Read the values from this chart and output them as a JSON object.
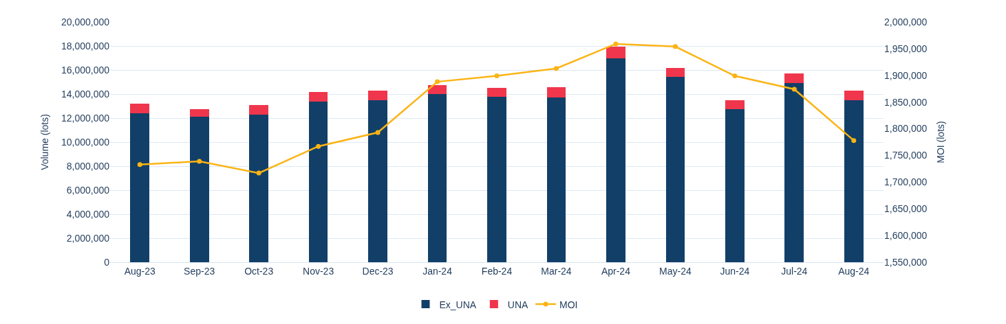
{
  "chart_data": {
    "type": "bar",
    "stacked": true,
    "xlabel": null,
    "ylabel": "Volume (lots)",
    "y2label": "MOI (lots)",
    "categories": [
      "Aug-23",
      "Sep-23",
      "Oct-23",
      "Nov-23",
      "Dec-23",
      "Jan-24",
      "Feb-24",
      "Mar-24",
      "Apr-24",
      "May-24",
      "Jun-24",
      "Jul-24",
      "Aug-24"
    ],
    "series": [
      {
        "name": "Ex_UNA",
        "color": "#123f68",
        "values": [
          12390000,
          12100000,
          12270000,
          13400000,
          13470000,
          13980000,
          13750000,
          13700000,
          17000000,
          15450000,
          12730000,
          14900000,
          13470000
        ]
      },
      {
        "name": "UNA",
        "color": "#f0364c",
        "values": [
          800000,
          630000,
          830000,
          750000,
          790000,
          790000,
          740000,
          850000,
          950000,
          750000,
          740000,
          840000,
          830000
        ]
      },
      {
        "name": "MOI",
        "type": "line",
        "axis": "y2",
        "color": "#fbb415",
        "marker": "circle",
        "line_style": "solid",
        "values": [
          1733000,
          1739000,
          1717000,
          1767000,
          1793000,
          1888000,
          1899000,
          1913000,
          1959000,
          1954000,
          1899000,
          1874000,
          1778000
        ]
      }
    ],
    "ylim": [
      0,
      20000000
    ],
    "yticks": [
      {
        "value": 0,
        "label": "0"
      },
      {
        "value": 2000000,
        "label": "2,000,000"
      },
      {
        "value": 4000000,
        "label": "4,000,000"
      },
      {
        "value": 6000000,
        "label": "6,000,000"
      },
      {
        "value": 8000000,
        "label": "8,000,000"
      },
      {
        "value": 10000000,
        "label": "10,000,000"
      },
      {
        "value": 12000000,
        "label": "12,000,000"
      },
      {
        "value": 14000000,
        "label": "14,000,000"
      },
      {
        "value": 16000000,
        "label": "16,000,000"
      },
      {
        "value": 18000000,
        "label": "18,000,000"
      },
      {
        "value": 20000000,
        "label": "20,000,000"
      }
    ],
    "y2lim": [
      1550000,
      2000000
    ],
    "y2ticks": [
      {
        "value": 1550000,
        "label": "1,550,000"
      },
      {
        "value": 1600000,
        "label": "1,600,000"
      },
      {
        "value": 1650000,
        "label": "1,650,000"
      },
      {
        "value": 1700000,
        "label": "1,700,000"
      },
      {
        "value": 1750000,
        "label": "1,750,000"
      },
      {
        "value": 1800000,
        "label": "1,800,000"
      },
      {
        "value": 1850000,
        "label": "1,850,000"
      },
      {
        "value": 1900000,
        "label": "1,900,000"
      },
      {
        "value": 1950000,
        "label": "1,950,000"
      },
      {
        "value": 2000000,
        "label": "2,000,000"
      }
    ],
    "grid": "y",
    "legend": "bottom"
  }
}
